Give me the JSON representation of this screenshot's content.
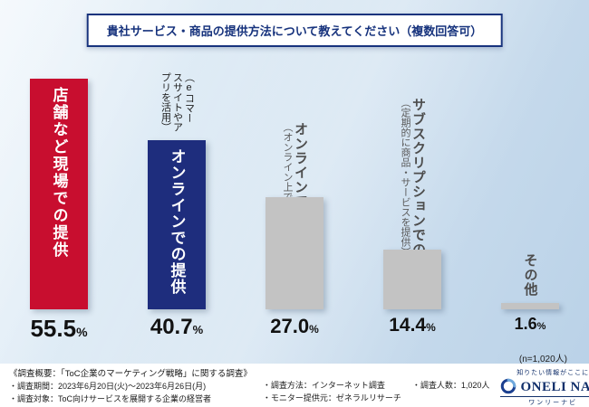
{
  "title": "貴社サービス・商品の提供方法について教えてください（複数回答可）",
  "note": "(n=1,020人)",
  "chart_data": {
    "type": "bar",
    "title": "貴社サービス・商品の提供方法について教えてください（複数回答可）",
    "categories": [
      "店舗など現場での提供",
      "オンラインでの提供（eコマースサイトやアプリを活用）",
      "オンラインでの対面提供（オンライン上で対話し提供）",
      "サブスクリプションでの提供（定期的に商品・サービスを提供）",
      "その他"
    ],
    "values": [
      55.5,
      40.7,
      27.0,
      14.4,
      1.6
    ],
    "unit": "%",
    "n_label": "(n=1,020人)",
    "colors": [
      "#c80e2f",
      "#1e2d7d",
      "#c3c3c3",
      "#c3c3c3",
      "#c3c3c3"
    ],
    "ylim": [
      0,
      60
    ],
    "grid": false,
    "legend": "none"
  },
  "bars": [
    {
      "label_main": "店舗など現場での提供",
      "label_sub": "",
      "value": "55.5",
      "unit": "%"
    },
    {
      "label_main": "オンラインでの提供",
      "label_sub": "（eコマースサイトやアプリを活用）",
      "value": "40.7",
      "unit": "%"
    },
    {
      "label_main": "オンラインでの対面提供",
      "label_sub": "（オンライン上で対話し提供）",
      "value": "27.0",
      "unit": "%"
    },
    {
      "label_main": "サブスクリプションでの提供",
      "label_sub": "（定期的に商品・サービスを提供）",
      "value": "14.4",
      "unit": "%"
    },
    {
      "label_main": "その他",
      "label_sub": "",
      "value": "1.6",
      "unit": "%"
    }
  ],
  "footer": {
    "heading": "《調査概要：「ToC企業のマーケティング戦略」に関する調査》",
    "items_left": [
      "・調査期間：2023年6月20日(火)～2023年6月26日(月)",
      "・調査対象：ToC向けサービスを展開する企業の経営者"
    ],
    "items_mid": [
      "・調査方法：インターネット調査",
      "・モニター提供元：ゼネラルリサーチ"
    ],
    "items_right": [
      "・調査人数：1,020人"
    ],
    "logo_tagline": "知りたい情報がここに",
    "logo_name": "ONELI NAVI",
    "logo_kana": "ワンリーナビ"
  }
}
